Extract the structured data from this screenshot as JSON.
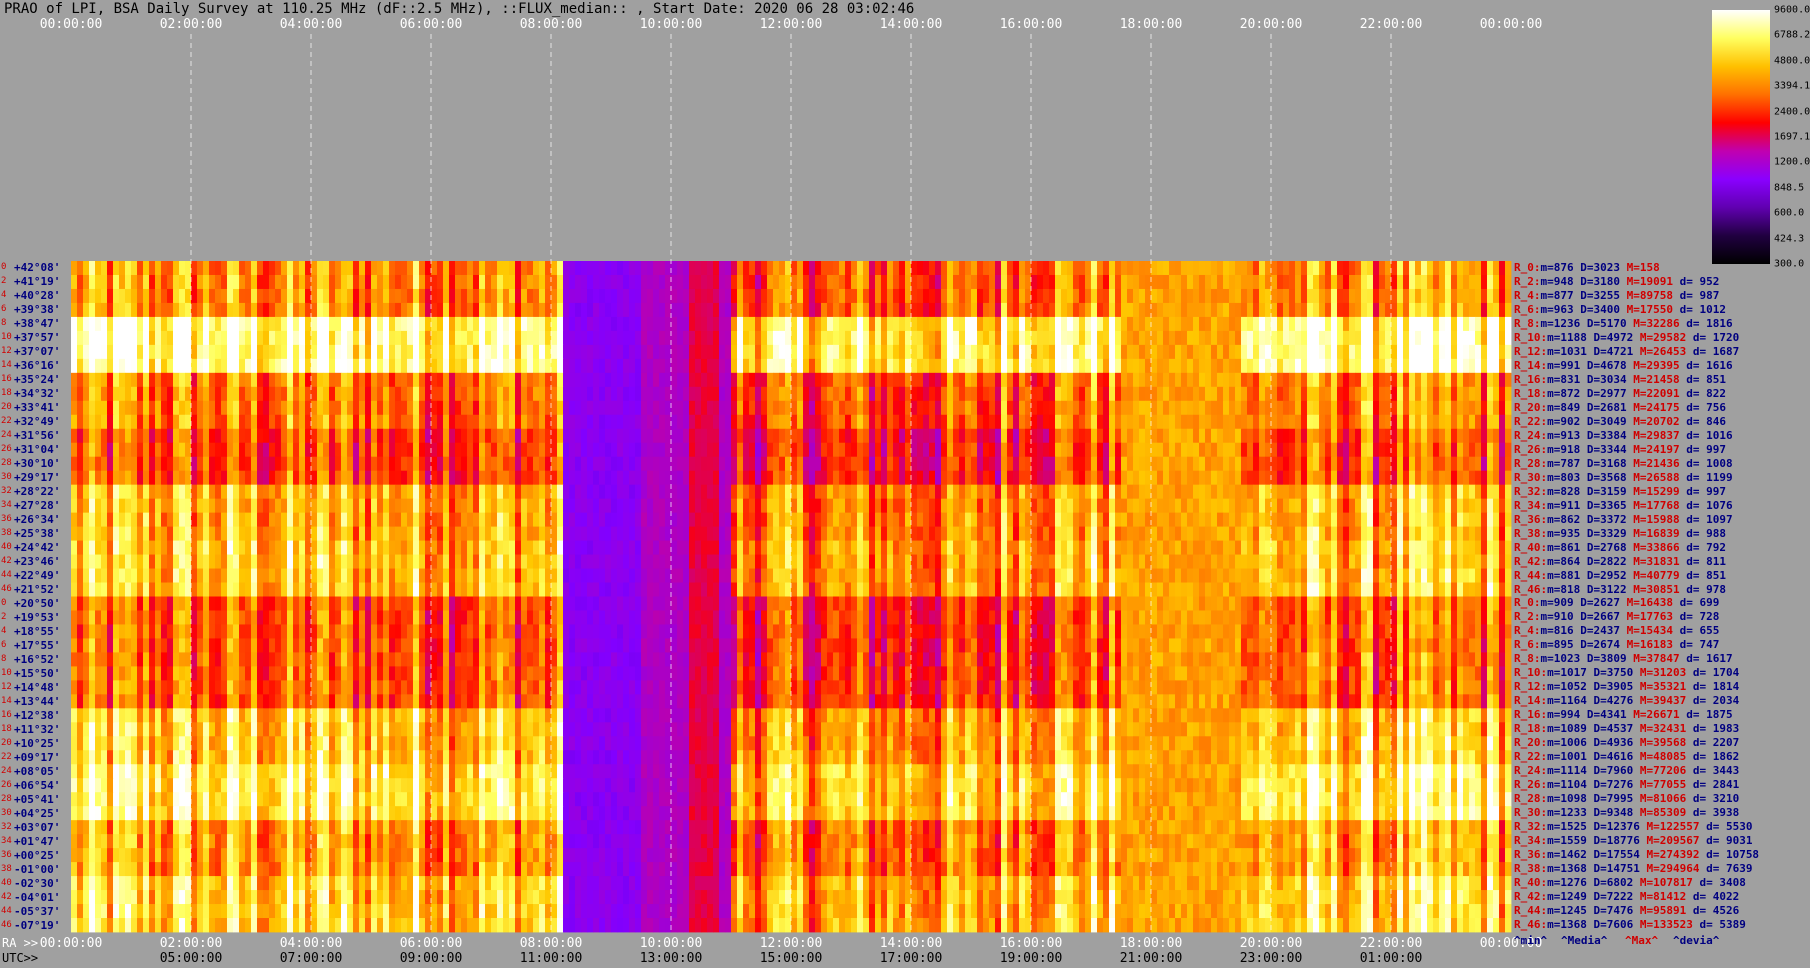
{
  "title": "PRAO of LPI, BSA Daily Survey at 110.25 MHz (dF::2.5 MHz), ::FLUX_median:: , Start Date: 2020 06 28 03:02:46",
  "axis": {
    "ra_label": "RA >>",
    "utc_label": "UTC>>",
    "ra_ticks": [
      "00:00:00",
      "02:00:00",
      "04:00:00",
      "06:00:00",
      "08:00:00",
      "10:00:00",
      "12:00:00",
      "14:00:00",
      "16:00:00",
      "18:00:00",
      "20:00:00",
      "22:00:00",
      "00:00:00"
    ],
    "utc_ticks": [
      "05:00:00",
      "07:00:00",
      "09:00:00",
      "11:00:00",
      "13:00:00",
      "15:00:00",
      "17:00:00",
      "19:00:00",
      "21:00:00",
      "23:00:00",
      "01:00:00"
    ]
  },
  "colorbar": {
    "labels": [
      "9600.0",
      "6788.2",
      "4800.0",
      "3394.1",
      "2400.0",
      "1697.1",
      "1200.0",
      "848.5",
      "600.0",
      "424.3",
      "300.0"
    ],
    "colors": [
      "#000000",
      "#200040",
      "#6000b0",
      "#8a00ff",
      "#c000b0",
      "#ff0000",
      "#ff7000",
      "#ffc000",
      "#ffff60",
      "#ffffff"
    ]
  },
  "footer": {
    "min": "^min^",
    "median": "^Media^",
    "max": "^Max^",
    "devia": "^devia^"
  },
  "chart_data": {
    "type": "heatmap",
    "title": "PRAO of LPI, BSA Daily Survey at 110.25 MHz (dF::2.5 MHz), ::FLUX_median:: , Start Date: 2020 06 28 03:02:46",
    "x_axis": "RA (hours)",
    "x_range": [
      0,
      24
    ],
    "color_scale": "log",
    "color_range": [
      300.0,
      9600.0
    ],
    "declinations": [
      "+42°08'",
      "+41°19'",
      "+40°28'",
      "+39°38'",
      "+38°47'",
      "+37°57'",
      "+37°07'",
      "+36°16'",
      "+35°24'",
      "+34°32'",
      "+33°41'",
      "+32°49'",
      "+31°56'",
      "+31°04'",
      "+30°10'",
      "+29°17'",
      "+28°22'",
      "+27°28'",
      "+26°34'",
      "+25°38'",
      "+24°42'",
      "+23°46'",
      "+22°49'",
      "+21°52'",
      "+20°50'",
      "+19°53'",
      "+18°55'",
      "+17°55'",
      "+16°52'",
      "+15°50'",
      "+14°48'",
      "+13°44'",
      "+12°38'",
      "+11°32'",
      "+10°25'",
      "+09°17'",
      "+08°05'",
      "+06°54'",
      "+05°41'",
      "+04°25'",
      "+03°07'",
      "+01°47'",
      "+00°25'",
      "-01°00'",
      "-02°30'",
      "-04°01'",
      "-05°37'",
      "-07°19'"
    ],
    "row_numbers": [
      "0",
      "2",
      "4",
      "6",
      "8",
      "10",
      "12",
      "14",
      "16",
      "18",
      "20",
      "22",
      "24",
      "26",
      "28",
      "30",
      "32",
      "34",
      "36",
      "38",
      "40",
      "42",
      "44",
      "46",
      "0",
      "2",
      "4",
      "6",
      "8",
      "10",
      "12",
      "14",
      "16",
      "18",
      "20",
      "22",
      "24",
      "26",
      "28",
      "30",
      "32",
      "34",
      "36",
      "38",
      "40",
      "42",
      "44",
      "46"
    ],
    "row_stats": [
      {
        "r": "R_0:",
        "m": "876",
        "D": "3023",
        "M": "158",
        "d": ""
      },
      {
        "r": "R_2:",
        "m": "948",
        "D": "3180",
        "M": "19091",
        "d": "952"
      },
      {
        "r": "R_4:",
        "m": "877",
        "D": "3255",
        "M": "89758",
        "d": "987"
      },
      {
        "r": "R_6:",
        "m": "963",
        "D": "3400",
        "M": "17550",
        "d": "1012"
      },
      {
        "r": "R_8:",
        "m": "1236",
        "D": "5170",
        "M": "32286",
        "d": "1816"
      },
      {
        "r": "R_10:",
        "m": "1188",
        "D": "4972",
        "M": "29582",
        "d": "1720"
      },
      {
        "r": "R_12:",
        "m": "1031",
        "D": "4721",
        "M": "26453",
        "d": "1687"
      },
      {
        "r": "R_14:",
        "m": "991",
        "D": "4678",
        "M": "29395",
        "d": "1616"
      },
      {
        "r": "R_16:",
        "m": "831",
        "D": "3034",
        "M": "21458",
        "d": "851"
      },
      {
        "r": "R_18:",
        "m": "872",
        "D": "2977",
        "M": "22091",
        "d": "822"
      },
      {
        "r": "R_20:",
        "m": "849",
        "D": "2681",
        "M": "24175",
        "d": "756"
      },
      {
        "r": "R_22:",
        "m": "902",
        "D": "3049",
        "M": "20702",
        "d": "846"
      },
      {
        "r": "R_24:",
        "m": "913",
        "D": "3384",
        "M": "29837",
        "d": "1016"
      },
      {
        "r": "R_26:",
        "m": "918",
        "D": "3344",
        "M": "24197",
        "d": "997"
      },
      {
        "r": "R_28:",
        "m": "787",
        "D": "3168",
        "M": "21436",
        "d": "1008"
      },
      {
        "r": "R_30:",
        "m": "803",
        "D": "3568",
        "M": "26588",
        "d": "1199"
      },
      {
        "r": "R_32:",
        "m": "828",
        "D": "3159",
        "M": "15299",
        "d": "997"
      },
      {
        "r": "R_34:",
        "m": "911",
        "D": "3365",
        "M": "17768",
        "d": "1076"
      },
      {
        "r": "R_36:",
        "m": "862",
        "D": "3372",
        "M": "15988",
        "d": "1097"
      },
      {
        "r": "R_38:",
        "m": "935",
        "D": "3329",
        "M": "16839",
        "d": "988"
      },
      {
        "r": "R_40:",
        "m": "861",
        "D": "2768",
        "M": "33866",
        "d": "792"
      },
      {
        "r": "R_42:",
        "m": "864",
        "D": "2822",
        "M": "31831",
        "d": "811"
      },
      {
        "r": "R_44:",
        "m": "881",
        "D": "2952",
        "M": "40779",
        "d": "851"
      },
      {
        "r": "R_46:",
        "m": "818",
        "D": "3122",
        "M": "30851",
        "d": "978"
      },
      {
        "r": "R_0:",
        "m": "909",
        "D": "2627",
        "M": "16438",
        "d": "699"
      },
      {
        "r": "R_2:",
        "m": "910",
        "D": "2667",
        "M": "17763",
        "d": "728"
      },
      {
        "r": "R_4:",
        "m": "816",
        "D": "2437",
        "M": "15434",
        "d": "655"
      },
      {
        "r": "R_6:",
        "m": "895",
        "D": "2674",
        "M": "16183",
        "d": "747"
      },
      {
        "r": "R_8:",
        "m": "1023",
        "D": "3809",
        "M": "37847",
        "d": "1617"
      },
      {
        "r": "R_10:",
        "m": "1017",
        "D": "3750",
        "M": "31203",
        "d": "1704"
      },
      {
        "r": "R_12:",
        "m": "1052",
        "D": "3905",
        "M": "35321",
        "d": "1814"
      },
      {
        "r": "R_14:",
        "m": "1164",
        "D": "4276",
        "M": "39437",
        "d": "2034"
      },
      {
        "r": "R_16:",
        "m": "994",
        "D": "4341",
        "M": "26671",
        "d": "1875"
      },
      {
        "r": "R_18:",
        "m": "1089",
        "D": "4537",
        "M": "32431",
        "d": "1983"
      },
      {
        "r": "R_20:",
        "m": "1006",
        "D": "4936",
        "M": "39568",
        "d": "2207"
      },
      {
        "r": "R_22:",
        "m": "1001",
        "D": "4616",
        "M": "48085",
        "d": "1862"
      },
      {
        "r": "R_24:",
        "m": "1114",
        "D": "7960",
        "M": "77206",
        "d": "3443"
      },
      {
        "r": "R_26:",
        "m": "1104",
        "D": "7276",
        "M": "77055",
        "d": "2841"
      },
      {
        "r": "R_28:",
        "m": "1098",
        "D": "7995",
        "M": "81066",
        "d": "3210"
      },
      {
        "r": "R_30:",
        "m": "1233",
        "D": "9348",
        "M": "85309",
        "d": "3938"
      },
      {
        "r": "R_32:",
        "m": "1525",
        "D": "12376",
        "M": "122557",
        "d": "5530"
      },
      {
        "r": "R_34:",
        "m": "1559",
        "D": "18776",
        "M": "209567",
        "d": "9031"
      },
      {
        "r": "R_36:",
        "m": "1462",
        "D": "17554",
        "M": "274392",
        "d": "10758"
      },
      {
        "r": "R_38:",
        "m": "1368",
        "D": "14751",
        "M": "294964",
        "d": "7639"
      },
      {
        "r": "R_40:",
        "m": "1276",
        "D": "6802",
        "M": "107817",
        "d": "3408"
      },
      {
        "r": "R_42:",
        "m": "1249",
        "D": "7222",
        "M": "81412",
        "d": "4022"
      },
      {
        "r": "R_44:",
        "m": "1245",
        "D": "7476",
        "M": "95891",
        "d": "4526"
      },
      {
        "r": "R_46:",
        "m": "1368",
        "D": "7606",
        "M": "133523",
        "d": "5389"
      }
    ]
  }
}
